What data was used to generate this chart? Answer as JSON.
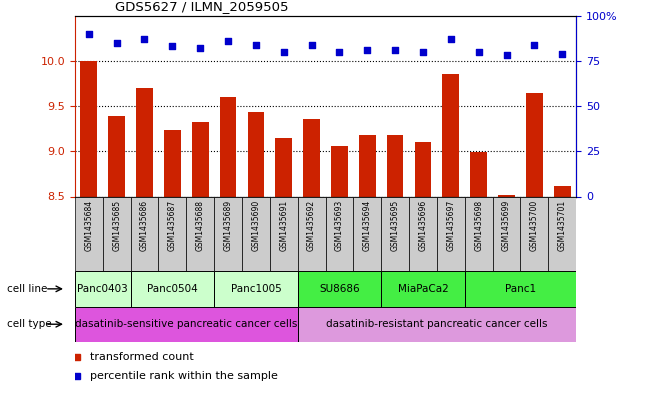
{
  "title": "GDS5627 / ILMN_2059505",
  "samples": [
    "GSM1435684",
    "GSM1435685",
    "GSM1435686",
    "GSM1435687",
    "GSM1435688",
    "GSM1435689",
    "GSM1435690",
    "GSM1435691",
    "GSM1435692",
    "GSM1435693",
    "GSM1435694",
    "GSM1435695",
    "GSM1435696",
    "GSM1435697",
    "GSM1435698",
    "GSM1435699",
    "GSM1435700",
    "GSM1435701"
  ],
  "bar_values": [
    10.0,
    9.39,
    9.7,
    9.24,
    9.32,
    9.6,
    9.43,
    9.15,
    9.36,
    9.06,
    9.18,
    9.18,
    9.1,
    9.86,
    8.99,
    8.52,
    9.65,
    8.62
  ],
  "percentile_values": [
    90,
    85,
    87,
    83,
    82,
    86,
    84,
    80,
    84,
    80,
    81,
    81,
    80,
    87,
    80,
    78,
    84,
    79
  ],
  "bar_color": "#cc2200",
  "dot_color": "#0000cc",
  "ylim_left": [
    8.5,
    10.5
  ],
  "ylim_right": [
    0,
    100
  ],
  "yticks_left": [
    8.5,
    9.0,
    9.5,
    10.0
  ],
  "yticks_right": [
    0,
    25,
    50,
    75,
    100
  ],
  "cell_line_groups": [
    {
      "label": "Panc0403",
      "start": 0,
      "end": 2,
      "color": "#ccffcc"
    },
    {
      "label": "Panc0504",
      "start": 2,
      "end": 5,
      "color": "#ccffcc"
    },
    {
      "label": "Panc1005",
      "start": 5,
      "end": 8,
      "color": "#ccffcc"
    },
    {
      "label": "SU8686",
      "start": 8,
      "end": 11,
      "color": "#44ee44"
    },
    {
      "label": "MiaPaCa2",
      "start": 11,
      "end": 14,
      "color": "#44ee44"
    },
    {
      "label": "Panc1",
      "start": 14,
      "end": 18,
      "color": "#44ee44"
    }
  ],
  "cell_type_groups": [
    {
      "label": "dasatinib-sensitive pancreatic cancer cells",
      "start": 0,
      "end": 8,
      "color": "#dd55dd"
    },
    {
      "label": "dasatinib-resistant pancreatic cancer cells",
      "start": 8,
      "end": 18,
      "color": "#dd99dd"
    }
  ],
  "sample_row_color": "#cccccc",
  "legend_items": [
    {
      "label": "transformed count",
      "color": "#cc2200",
      "marker": "s"
    },
    {
      "label": "percentile rank within the sample",
      "color": "#0000cc",
      "marker": "s"
    }
  ],
  "background_color": "#ffffff",
  "tick_label_color_left": "#cc2200",
  "tick_label_color_right": "#0000cc"
}
